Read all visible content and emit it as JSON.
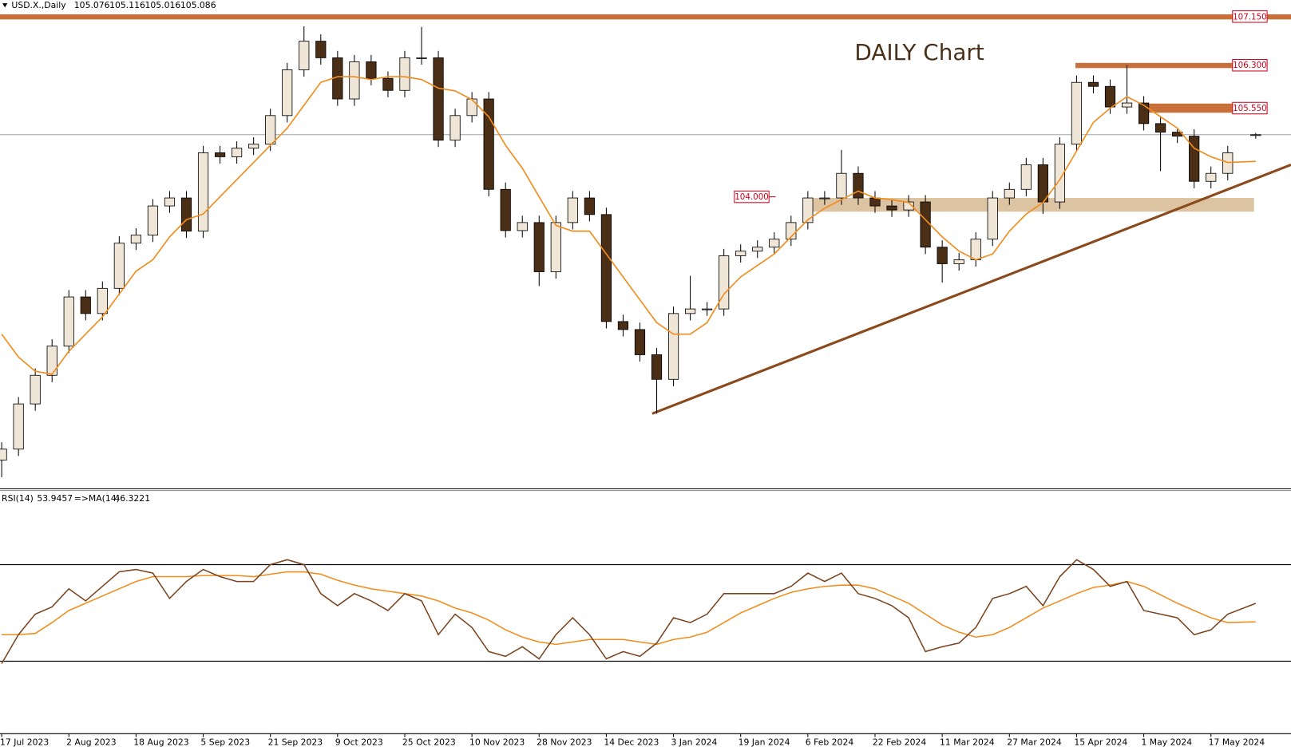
{
  "chart_data": [
    {
      "type": "candlestick",
      "symbol": "USD.X.,Daily",
      "annotation": "DAILY Chart",
      "x": [
        0,
        3,
        6,
        9,
        12,
        15,
        18,
        21,
        24,
        27,
        30,
        33,
        36,
        39,
        42,
        45,
        48,
        51,
        54,
        57,
        60,
        63,
        66,
        69,
        72,
        75,
        78,
        81,
        84,
        87,
        90,
        93,
        96,
        99,
        102,
        105,
        108,
        111,
        114,
        117,
        120,
        123,
        126,
        129,
        132,
        135,
        138,
        141,
        144,
        147,
        150,
        153,
        156,
        159,
        162,
        165,
        168,
        171,
        174,
        177,
        180,
        183,
        186,
        189,
        192,
        195,
        198,
        201,
        204,
        207,
        210,
        213,
        216,
        219,
        224
      ],
      "open": [
        99.4,
        99.59,
        100.38,
        100.88,
        101.39,
        102.25,
        101.96,
        102.4,
        103.19,
        103.33,
        103.84,
        103.98,
        103.4,
        104.77,
        104.7,
        104.85,
        104.92,
        105.42,
        106.22,
        106.72,
        106.43,
        105.71,
        106.36,
        106.07,
        105.86,
        106.43,
        106.43,
        104.99,
        105.42,
        105.71,
        104.13,
        103.41,
        103.55,
        102.69,
        103.55,
        103.98,
        103.69,
        101.82,
        101.68,
        101.24,
        100.81,
        101.96,
        102.04,
        102.04,
        102.97,
        103.05,
        103.12,
        103.26,
        103.55,
        103.98,
        103.98,
        104.41,
        103.98,
        103.84,
        103.77,
        103.91,
        103.12,
        102.83,
        102.9,
        103.26,
        103.98,
        104.13,
        104.56,
        103.91,
        104.92,
        106.0,
        105.93,
        105.57,
        105.64,
        105.28,
        105.13,
        105.06,
        104.27,
        104.41,
        105.076
      ],
      "high": [
        99.71,
        100.5,
        101.0,
        101.51,
        102.37,
        102.37,
        102.52,
        103.31,
        103.45,
        103.96,
        104.1,
        104.1,
        104.89,
        104.89,
        104.97,
        105.04,
        105.54,
        106.34,
        106.98,
        106.84,
        106.55,
        106.48,
        106.48,
        106.19,
        106.55,
        106.97,
        106.55,
        105.54,
        105.83,
        105.83,
        104.25,
        103.67,
        103.67,
        103.67,
        104.1,
        104.1,
        103.81,
        101.94,
        101.8,
        101.36,
        102.08,
        102.62,
        102.16,
        103.09,
        103.17,
        103.24,
        103.38,
        103.67,
        104.1,
        104.1,
        104.82,
        104.53,
        104.1,
        103.96,
        104.03,
        104.03,
        103.24,
        103.02,
        103.38,
        104.1,
        104.25,
        104.68,
        104.68,
        105.04,
        106.12,
        106.12,
        106.05,
        106.3,
        105.76,
        105.4,
        105.18,
        105.18,
        104.53,
        104.89,
        105.116
      ],
      "low": [
        99.1,
        99.47,
        100.26,
        100.76,
        101.27,
        101.84,
        101.84,
        102.28,
        103.07,
        103.21,
        103.72,
        103.28,
        103.28,
        104.58,
        104.58,
        104.73,
        104.8,
        105.3,
        106.1,
        106.31,
        105.59,
        105.59,
        105.95,
        105.74,
        105.74,
        106.31,
        104.87,
        104.87,
        105.3,
        104.01,
        103.29,
        103.29,
        102.44,
        102.57,
        103.43,
        103.57,
        101.7,
        101.56,
        101.12,
        100.21,
        100.69,
        101.84,
        101.92,
        101.92,
        102.85,
        102.93,
        103.0,
        103.14,
        103.43,
        103.86,
        103.86,
        103.86,
        103.72,
        103.65,
        103.65,
        103.0,
        102.5,
        102.71,
        102.78,
        103.14,
        103.86,
        104.01,
        103.7,
        103.79,
        104.8,
        105.81,
        105.45,
        105.45,
        105.16,
        104.45,
        104.94,
        104.15,
        104.15,
        104.29,
        105.016
      ],
      "close": [
        99.59,
        100.38,
        100.88,
        101.39,
        102.25,
        101.96,
        102.4,
        103.19,
        103.33,
        103.84,
        103.98,
        103.4,
        104.77,
        104.7,
        104.85,
        104.92,
        105.42,
        106.22,
        106.72,
        106.43,
        105.71,
        106.36,
        106.07,
        105.86,
        106.43,
        106.43,
        104.99,
        105.42,
        105.71,
        104.13,
        103.41,
        103.55,
        102.69,
        103.55,
        103.98,
        103.69,
        101.82,
        101.68,
        101.24,
        100.81,
        101.96,
        102.04,
        102.04,
        102.97,
        103.05,
        103.12,
        103.26,
        103.55,
        103.98,
        103.98,
        104.41,
        103.98,
        103.84,
        103.77,
        103.91,
        103.12,
        102.83,
        102.9,
        103.26,
        103.98,
        104.13,
        104.56,
        103.91,
        104.92,
        106.0,
        105.93,
        105.57,
        105.64,
        105.28,
        105.13,
        105.06,
        104.27,
        104.41,
        104.77,
        105.086
      ],
      "up_color": "#efe6d8",
      "down_color": "#4b2e16",
      "ma_values": [
        101.6,
        101.2,
        100.95,
        100.9,
        101.3,
        101.6,
        101.9,
        102.3,
        102.7,
        102.9,
        103.3,
        103.6,
        103.7,
        104.0,
        104.3,
        104.6,
        104.9,
        105.2,
        105.6,
        106.0,
        106.1,
        106.1,
        106.05,
        106.1,
        106.1,
        106.05,
        105.9,
        105.85,
        105.7,
        105.4,
        104.9,
        104.5,
        104.0,
        103.5,
        103.4,
        103.4,
        103.0,
        102.6,
        102.2,
        101.8,
        101.6,
        101.6,
        101.8,
        102.3,
        102.6,
        102.8,
        103.0,
        103.3,
        103.6,
        103.8,
        103.95,
        104.1,
        103.98,
        103.95,
        103.9,
        103.6,
        103.3,
        103.05,
        102.9,
        103.0,
        103.4,
        103.7,
        103.9,
        104.3,
        104.8,
        105.3,
        105.55,
        105.75,
        105.6,
        105.4,
        105.2,
        104.85,
        104.7,
        104.6,
        104.62
      ],
      "ma_color": "#f28c1c",
      "xlim": [
        -0.3,
        230.3
      ],
      "ylim": [
        98.91,
        107.44
      ],
      "levels": [
        {
          "value": 107.15,
          "label": "107.150"
        },
        {
          "value": 106.3,
          "label": "106.300"
        },
        {
          "value": 105.55,
          "label": "105.550"
        },
        {
          "value": 104,
          "label": "104.000"
        }
      ],
      "zones": [
        {
          "x": [
            -0.3,
            230.3
          ],
          "y": [
            107.1,
            107.19
          ],
          "color": "#c8703a"
        },
        {
          "x": [
            191.8,
            219.8
          ],
          "y": [
            106.25,
            106.34
          ],
          "color": "#c8703a"
        },
        {
          "x": [
            203.4,
            219.8
          ],
          "y": [
            105.47,
            105.63
          ],
          "color": "#c8703a"
        },
        {
          "x": [
            143.8,
            223.7
          ],
          "y": [
            103.74,
            103.98
          ],
          "color": "#dcc3a2"
        }
      ],
      "trendline": {
        "x": [
          116.2,
          230.3
        ],
        "y": [
          100.21,
          104.56
        ],
        "color": "#8b4a1c"
      }
    },
    {
      "type": "line",
      "label": "RSI(14)",
      "ma_label": "=>MA(14)",
      "series": [
        {
          "values": [
            29,
            41,
            49.5,
            52.5,
            60,
            55,
            61,
            67,
            68,
            66.5,
            56,
            63,
            68,
            65,
            63,
            63,
            70,
            72,
            70,
            58,
            53,
            58,
            55,
            51,
            58,
            55,
            41,
            49.5,
            44,
            34,
            32,
            36,
            31,
            41,
            48,
            41,
            31,
            34,
            32,
            37.5,
            48,
            46,
            49.5,
            58,
            58,
            58,
            58,
            61,
            66.5,
            63,
            66.5,
            58,
            56,
            53,
            48,
            34,
            36,
            37.5,
            44,
            56,
            58,
            61,
            53,
            65,
            72,
            68,
            61,
            63,
            51,
            49.5,
            48,
            41,
            43,
            49.5,
            53.9457
          ],
          "color": "#7a4520"
        },
        {
          "values": [
            41,
            41,
            41.5,
            46,
            51,
            54,
            57,
            60,
            63,
            65,
            65,
            65,
            65.5,
            65.5,
            65.5,
            65,
            66,
            67,
            67,
            66,
            63.5,
            61.5,
            60,
            59,
            58,
            57,
            55,
            52,
            50,
            47,
            43,
            40,
            38,
            37,
            38,
            39,
            39,
            39,
            38,
            37,
            39,
            40,
            42,
            46,
            50,
            53,
            56,
            58.5,
            60,
            61,
            61.5,
            61.5,
            60,
            57,
            54,
            49.5,
            45,
            42,
            40,
            41,
            44,
            48,
            52,
            55,
            58,
            60.5,
            61.5,
            63,
            61,
            57.5,
            54,
            51,
            48,
            46,
            46.3221
          ],
          "color": "#f28c1c"
        }
      ],
      "ylim": [
        0,
        100
      ],
      "levels": [
        70,
        30
      ],
      "xticks": [
        {
          "value": 0,
          "label": "17 Jul 2023"
        },
        {
          "value": 12,
          "label": "2 Aug 2023"
        },
        {
          "value": 24,
          "label": "18 Aug 2023"
        },
        {
          "value": 36,
          "label": "5 Sep 2023"
        },
        {
          "value": 48,
          "label": "21 Sep 2023"
        },
        {
          "value": 60,
          "label": "9 Oct 2023"
        },
        {
          "value": 72,
          "label": "25 Oct 2023"
        },
        {
          "value": 84,
          "label": "10 Nov 2023"
        },
        {
          "value": 96,
          "label": "28 Nov 2023"
        },
        {
          "value": 108,
          "label": "14 Dec 2023"
        },
        {
          "value": 120,
          "label": "3 Jan 2024"
        },
        {
          "value": 132,
          "label": "19 Jan 2024"
        },
        {
          "value": 144,
          "label": "6 Feb 2024"
        },
        {
          "value": 156,
          "label": "22 Feb 2024"
        },
        {
          "value": 168,
          "label": "11 Mar 2024"
        },
        {
          "value": 180,
          "label": "27 Mar 2024"
        },
        {
          "value": 192,
          "label": "15 Apr 2024"
        },
        {
          "value": 204,
          "label": "1 May 2024"
        },
        {
          "value": 216,
          "label": "17 May 2024"
        }
      ]
    }
  ]
}
